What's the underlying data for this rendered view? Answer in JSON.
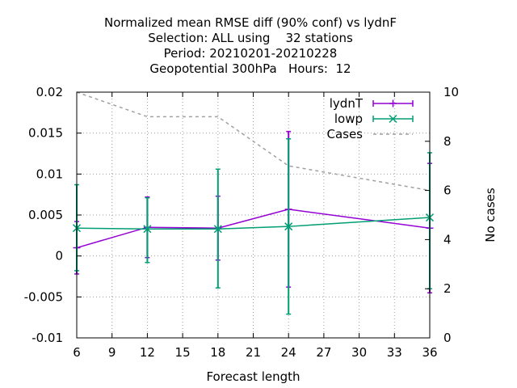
{
  "chart_data": {
    "type": "line",
    "title_lines": [
      "Normalized mean RMSE diff (90% conf) vs lydnF",
      "Selection: ALL using    32 stations",
      "Period: 20210201-20210228",
      "Geopotential 300hPa   Hours:  12"
    ],
    "xlabel": "Forecast length",
    "ylabel": "",
    "y2label": "No cases",
    "xlim": [
      6,
      36
    ],
    "ylim": [
      -0.01,
      0.02
    ],
    "y2lim": [
      0,
      10
    ],
    "xticks": [
      "6",
      "9",
      "12",
      "15",
      "18",
      "21",
      "24",
      "27",
      "30",
      "33",
      "36"
    ],
    "yticks": [
      "-0.01",
      "-0.005",
      "0",
      "0.005",
      "0.01",
      "0.015",
      "0.02"
    ],
    "y2ticks": [
      "0",
      "2",
      "4",
      "6",
      "8",
      "10"
    ],
    "grid": true,
    "legend_position": "top-right",
    "x": [
      6,
      12,
      18,
      24,
      36
    ],
    "series": [
      {
        "name": "lydnT",
        "color": "#9400d3",
        "marker": "plus",
        "axis": "y",
        "values": [
          0.001,
          0.0035,
          0.0034,
          0.0057,
          0.0034
        ],
        "err_low": [
          -0.0022,
          -0.0002,
          -0.0005,
          -0.0038,
          -0.0045
        ],
        "err_high": [
          0.0042,
          0.0072,
          0.0073,
          0.0152,
          0.0113
        ]
      },
      {
        "name": "lowp",
        "color": "#009e73",
        "marker": "cross",
        "axis": "y",
        "values": [
          0.0034,
          0.0033,
          0.0033,
          0.0036,
          0.0047
        ],
        "err_low": [
          -0.0018,
          -0.0008,
          -0.0039,
          -0.0071,
          -0.004
        ],
        "err_high": [
          0.0087,
          0.0071,
          0.0106,
          0.0143,
          0.0126
        ]
      },
      {
        "name": "Cases",
        "color": "#a0a0a0",
        "style": "dashed",
        "axis": "y2",
        "values": [
          10,
          9,
          9,
          7,
          6
        ]
      }
    ]
  }
}
